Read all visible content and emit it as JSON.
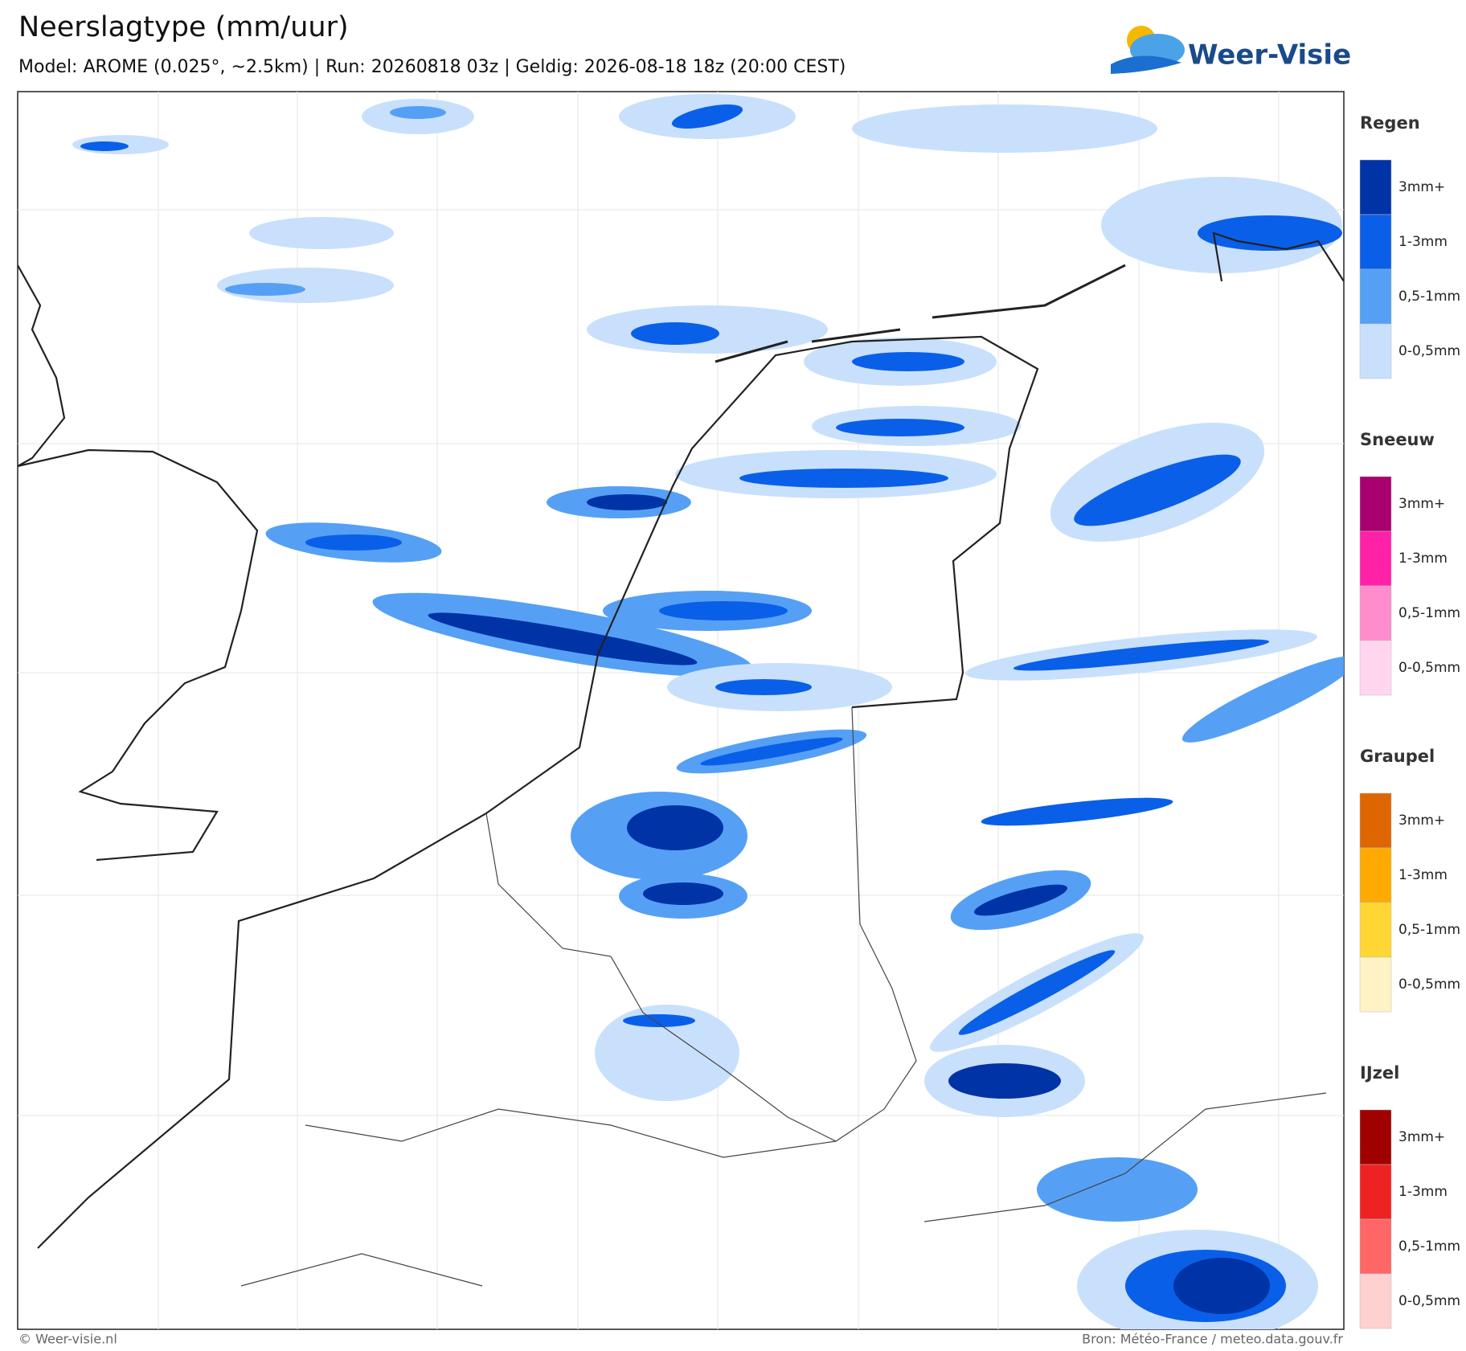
{
  "header": {
    "title": "Neerslagtype (mm/uur)",
    "subtitle": "Model: AROME (0.025°, ~2.5km)  |  Run: 20260818 03z  |  Geldig: 2026-08-18 18z (20:00 CEST)"
  },
  "logo": {
    "text": "Weer-Visie"
  },
  "legend": [
    {
      "title": "Regen",
      "items": [
        "3mm+",
        "1-3mm",
        "0,5-1mm",
        "0-0,5mm"
      ],
      "colors": [
        "#0033a6",
        "#0a5fe8",
        "#55a0f5",
        "#c8e0fb"
      ]
    },
    {
      "title": "Sneeuw",
      "items": [
        "3mm+",
        "1-3mm",
        "0,5-1mm",
        "0-0,5mm"
      ],
      "colors": [
        "#a8006e",
        "#ff22a8",
        "#ff8ccd",
        "#ffd6ee"
      ]
    },
    {
      "title": "Graupel",
      "items": [
        "3mm+",
        "1-3mm",
        "0,5-1mm",
        "0-0,5mm"
      ],
      "colors": [
        "#dd6600",
        "#ffaa00",
        "#ffd633",
        "#fff3c6"
      ]
    },
    {
      "title": "IJzel",
      "items": [
        "3mm+",
        "1-3mm",
        "0,5-1mm",
        "0-0,5mm"
      ],
      "colors": [
        "#a00000",
        "#ee2222",
        "#ff6666",
        "#ffd0d0"
      ]
    }
  ],
  "footer": {
    "left": "© Weer-visie.nl",
    "right": "Bron: Météo-France / meteo.data.gouv.fr"
  }
}
